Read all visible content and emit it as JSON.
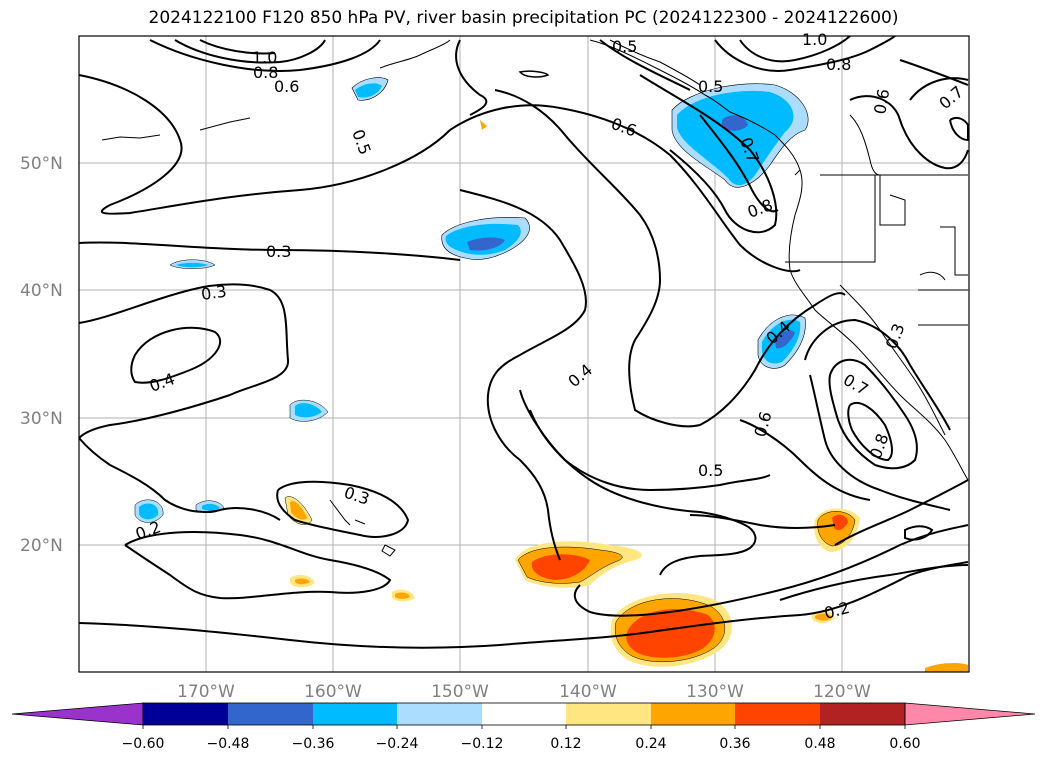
{
  "title": "2024122100 F120 850 hPa PV, river basin precipitation PC (2024122300 - 2024122600)",
  "map": {
    "lon_range": [
      -180,
      -110
    ],
    "lat_range": [
      10,
      60
    ],
    "lat_labels": [
      "50°N",
      "40°N",
      "30°N",
      "20°N"
    ],
    "lon_labels": [
      "170°W",
      "160°W",
      "150°W",
      "140°W",
      "130°W",
      "120°W"
    ],
    "gridlines": true
  },
  "contour_labels": [
    "1.0",
    "0.8",
    "0.6",
    "0.5",
    "0.5",
    "0.6",
    "0.5",
    "0.7",
    "0.8",
    "1.0",
    "0.8",
    "0.6",
    "0.7",
    "0.3",
    "0.3",
    "0.4",
    "0.4",
    "0.4",
    "0.3",
    "0.7",
    "0.8",
    "0.6",
    "0.5",
    "0.3",
    "0.2",
    "0.2"
  ],
  "colorbar": {
    "colors": [
      "#9933cc",
      "#000099",
      "#3366cc",
      "#00bbff",
      "#aaddff",
      "#ffffff",
      "#ffe680",
      "#ffa500",
      "#ff4400",
      "#b22222",
      "#ff88aa"
    ],
    "ticks": [
      "−0.60",
      "−0.48",
      "−0.36",
      "−0.24",
      "−0.12",
      "0.12",
      "0.24",
      "0.36",
      "0.48",
      "0.60"
    ],
    "extend": "both"
  }
}
